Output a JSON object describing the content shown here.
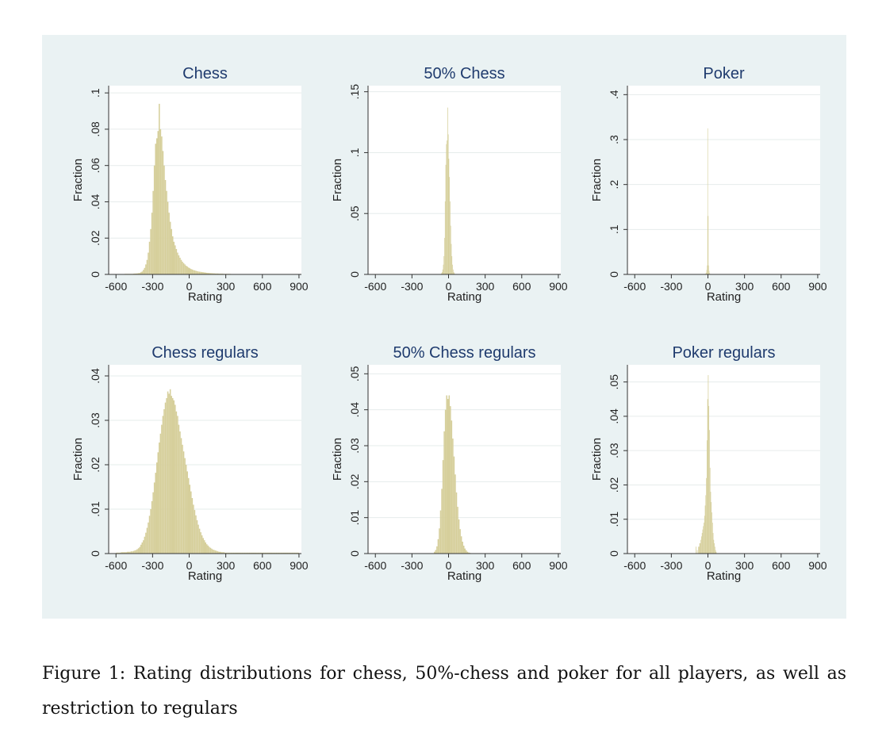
{
  "caption": "Figure 1: Rating distributions for chess, 50%-chess and poker for all players, as well as restriction to regulars",
  "colors": {
    "panel_bg": "#eaf2f3",
    "plot_bg": "#ffffff",
    "bar": "#d6cf9b",
    "title": "#1f3b6e",
    "grid": "#e6eceb"
  },
  "chart_data": [
    {
      "type": "bar",
      "title": "Chess",
      "xlabel": "Rating",
      "ylabel": "Fraction",
      "xlim": [
        -660,
        920
      ],
      "ylim": [
        0,
        0.104
      ],
      "xticks": [
        "-600",
        "-300",
        "0",
        "300",
        "600",
        "900"
      ],
      "yticks": [
        "0",
        ".02",
        ".04",
        ".06",
        ".08",
        ".1"
      ],
      "bin_width": 10,
      "bins_start": -600,
      "values": [
        0.0002,
        0.0002,
        0.0002,
        0.0002,
        0.0002,
        0.0002,
        0.0002,
        0.0003,
        0.0003,
        0.0003,
        0.0003,
        0.0003,
        0.0003,
        0.0003,
        0.0004,
        0.0005,
        0.0005,
        0.0006,
        0.0007,
        0.0008,
        0.0012,
        0.0016,
        0.0025,
        0.0036,
        0.0055,
        0.008,
        0.012,
        0.018,
        0.025,
        0.034,
        0.046,
        0.06,
        0.072,
        0.075,
        0.079,
        0.094,
        0.08,
        0.076,
        0.068,
        0.06,
        0.052,
        0.046,
        0.04,
        0.034,
        0.029,
        0.025,
        0.021,
        0.018,
        0.016,
        0.014,
        0.012,
        0.0105,
        0.0092,
        0.008,
        0.007,
        0.0062,
        0.0055,
        0.0048,
        0.0043,
        0.0038,
        0.0034,
        0.003,
        0.0027,
        0.0024,
        0.0022,
        0.002,
        0.0018,
        0.0016,
        0.0015,
        0.0014,
        0.0013,
        0.0012,
        0.0011,
        0.001,
        0.0009,
        0.0008,
        0.0008,
        0.0007,
        0.0007,
        0.0006,
        0.0006,
        0.0005,
        0.0005,
        0.0005,
        0.0004,
        0.0004,
        0.0004,
        0.0004,
        0.0003,
        0.0003,
        0.0003,
        0.0003,
        0.0003,
        0.0003,
        0.0002,
        0.0002,
        0.0002,
        0.0002,
        0.0002,
        0.0002,
        0.0002,
        0.0002,
        0.0002,
        0.0002,
        0.0002,
        0.0002,
        0.0002,
        0.0002,
        0.0002,
        0.0002,
        0.0002,
        0.0002,
        0.0002,
        0.0002,
        0.0002,
        0.0002,
        0.0002,
        0.0002,
        0.0002,
        0.0002,
        0.0002,
        0.0002,
        0.0002,
        0.0002,
        0.0002,
        0.0002,
        0.0002,
        0.0002,
        0.0002,
        0.0002,
        0.0002,
        0.0002,
        0.0002,
        0.0002,
        0.0002,
        0.0002,
        0.0002,
        0.0002,
        0.0002,
        0.0002,
        0.0002,
        0.0002,
        0.0002,
        0.0002,
        0.0002,
        0.0002,
        0.0002,
        0.0002
      ]
    },
    {
      "type": "bar",
      "title": "50% Chess",
      "xlabel": "Rating",
      "ylabel": "Fraction",
      "xlim": [
        -660,
        920
      ],
      "ylim": [
        0,
        0.155
      ],
      "xticks": [
        "-600",
        "-300",
        "0",
        "300",
        "600",
        "900"
      ],
      "yticks": [
        "0",
        ".05",
        ".1",
        ".15"
      ],
      "bin_width": 5,
      "bins_start": -60,
      "values": [
        0.001,
        0.002,
        0.004,
        0.008,
        0.015,
        0.03,
        0.06,
        0.09,
        0.107,
        0.11,
        0.137,
        0.115,
        0.095,
        0.08,
        0.06,
        0.04,
        0.025,
        0.015,
        0.008,
        0.004,
        0.002,
        0.001
      ]
    },
    {
      "type": "bar",
      "title": "Poker",
      "xlabel": "Rating",
      "ylabel": "Fraction",
      "xlim": [
        -660,
        920
      ],
      "ylim": [
        0,
        0.42
      ],
      "xticks": [
        "-600",
        "-300",
        "0",
        "300",
        "600",
        "900"
      ],
      "yticks": [
        "0",
        ".1",
        ".2",
        ".3",
        ".4"
      ],
      "bin_width": 4,
      "bins_start": -24,
      "values": [
        0.001,
        0.002,
        0.004,
        0.01,
        0.02,
        0.325,
        0.13,
        0.02,
        0.008,
        0.003,
        0.001,
        0.001
      ]
    },
    {
      "type": "bar",
      "title": "Chess regulars",
      "xlabel": "Rating",
      "ylabel": "Fraction",
      "xlim": [
        -660,
        920
      ],
      "ylim": [
        0,
        0.0425
      ],
      "xticks": [
        "-600",
        "-300",
        "0",
        "300",
        "600",
        "900"
      ],
      "yticks": [
        "0",
        ".01",
        ".02",
        ".03",
        ".04"
      ],
      "bin_width": 10,
      "bins_start": -600,
      "values": [
        0.0002,
        0.0002,
        0.0002,
        0.0002,
        0.0003,
        0.0003,
        0.0003,
        0.0003,
        0.0003,
        0.0004,
        0.0004,
        0.0004,
        0.0005,
        0.0005,
        0.0006,
        0.0007,
        0.0008,
        0.001,
        0.0012,
        0.0015,
        0.002,
        0.0025,
        0.003,
        0.0038,
        0.0047,
        0.0058,
        0.007,
        0.0085,
        0.01,
        0.0118,
        0.0138,
        0.016,
        0.0182,
        0.0205,
        0.0228,
        0.025,
        0.027,
        0.029,
        0.031,
        0.0325,
        0.034,
        0.035,
        0.0365,
        0.036,
        0.037,
        0.0355,
        0.035,
        0.0345,
        0.0335,
        0.032,
        0.031,
        0.029,
        0.0275,
        0.026,
        0.0245,
        0.023,
        0.0215,
        0.02,
        0.0185,
        0.017,
        0.0155,
        0.014,
        0.0125,
        0.011,
        0.0098,
        0.0086,
        0.0075,
        0.0065,
        0.0056,
        0.0048,
        0.0041,
        0.0035,
        0.003,
        0.0025,
        0.0021,
        0.0018,
        0.0015,
        0.0013,
        0.0011,
        0.0009,
        0.0008,
        0.0007,
        0.0006,
        0.0005,
        0.0004,
        0.0004,
        0.0003,
        0.0003,
        0.0003,
        0.0002,
        0.0002,
        0.0002,
        0.0002,
        0.0002,
        0.0002,
        0.0002,
        0.0002,
        0.0002,
        0.0002,
        0.0002,
        0.0002,
        0.0002,
        0.0002,
        0.0002,
        0.0002,
        0.0002,
        0.0002,
        0.0002,
        0.0002,
        0.0002,
        0.0002,
        0.0002,
        0.0002,
        0.0002,
        0.0002,
        0.0002,
        0.0002,
        0.0002,
        0.0002,
        0.0002,
        0.0002,
        0.0002,
        0.0002,
        0.0002,
        0.0002,
        0.0002,
        0.0002,
        0.0002,
        0.0002,
        0.0002,
        0.0002,
        0.0002,
        0.0002,
        0.0002,
        0.0002,
        0.0002,
        0.0002,
        0.0002,
        0.0002,
        0.0002,
        0.0002,
        0.0002,
        0.0002,
        0.0002,
        0.0002,
        0.0002,
        0.0002,
        0.0002,
        0.0002,
        0.0002
      ]
    },
    {
      "type": "bar",
      "title": "50% Chess regulars",
      "xlabel": "Rating",
      "ylabel": "Fraction",
      "xlim": [
        -660,
        920
      ],
      "ylim": [
        0,
        0.0525
      ],
      "xticks": [
        "-600",
        "-300",
        "0",
        "300",
        "600",
        "900"
      ],
      "yticks": [
        "0",
        ".01",
        ".02",
        ".03",
        ".04",
        ".05"
      ],
      "bin_width": 10,
      "bins_start": -120,
      "values": [
        0.0005,
        0.001,
        0.002,
        0.004,
        0.007,
        0.012,
        0.018,
        0.026,
        0.034,
        0.04,
        0.044,
        0.043,
        0.044,
        0.041,
        0.037,
        0.032,
        0.027,
        0.022,
        0.017,
        0.013,
        0.0095,
        0.0068,
        0.0048,
        0.0033,
        0.0022,
        0.0014,
        0.0009,
        0.0005,
        0.0003,
        0.0002
      ]
    },
    {
      "type": "bar",
      "title": "Poker regulars",
      "xlabel": "Rating",
      "ylabel": "Fraction",
      "xlim": [
        -660,
        920
      ],
      "ylim": [
        0,
        0.055
      ],
      "xticks": [
        "-600",
        "-300",
        "0",
        "300",
        "600",
        "900"
      ],
      "yticks": [
        "0",
        ".01",
        ".02",
        ".03",
        ".04",
        ".05"
      ],
      "bin_width": 5,
      "bins_start": -100,
      "values": [
        0.002,
        0,
        0.001,
        0,
        0.002,
        0.002,
        0.003,
        0.003,
        0.004,
        0.005,
        0.006,
        0.007,
        0.008,
        0.009,
        0.011,
        0.014,
        0.017,
        0.022,
        0.033,
        0.045,
        0.052,
        0.043,
        0.036,
        0.025,
        0.018,
        0.015,
        0.012,
        0.009,
        0.006,
        0.004,
        0.003,
        0.002,
        0.001,
        0.0005
      ]
    }
  ]
}
